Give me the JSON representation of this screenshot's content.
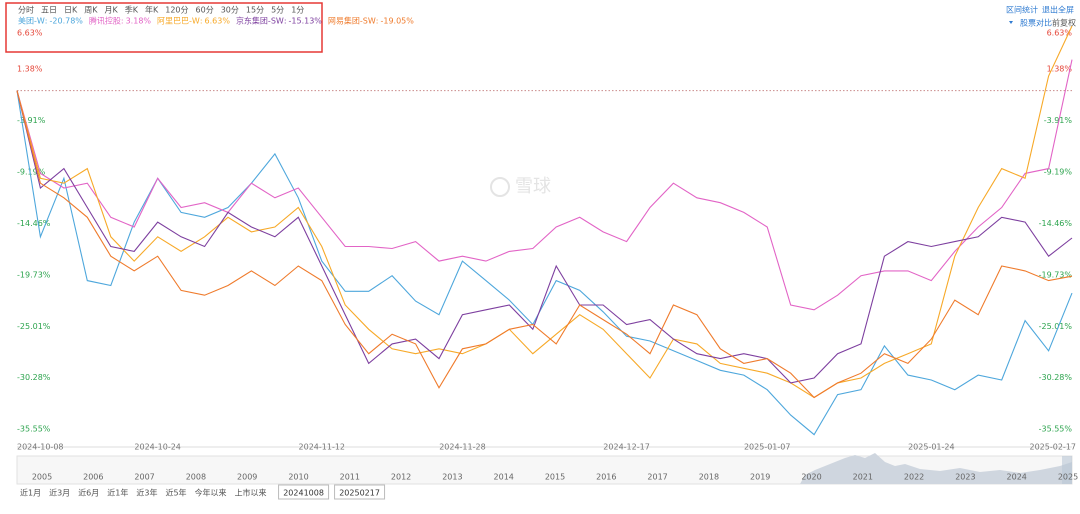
{
  "toolbar": {
    "tabs": [
      "分时",
      "五日",
      "日K",
      "周K",
      "月K",
      "季K",
      "年K",
      "120分",
      "60分",
      "30分",
      "15分",
      "5分",
      "1分"
    ],
    "right": [
      "区间统计",
      "退出全屏"
    ],
    "options": [
      "股票对比",
      "前复权"
    ]
  },
  "watermark": "雪球",
  "navigator": {
    "years": [
      "2005",
      "2006",
      "2007",
      "2008",
      "2009",
      "2010",
      "2011",
      "2012",
      "2013",
      "2014",
      "2015",
      "2016",
      "2017",
      "2018",
      "2019",
      "2020",
      "2021",
      "2022",
      "2023",
      "2024",
      "2025"
    ],
    "ranges": [
      "近1月",
      "近3月",
      "近6月",
      "近1年",
      "近3年",
      "近5年",
      "今年以来",
      "上市以来"
    ],
    "start": "20241008",
    "end": "20250217"
  },
  "chart_data": {
    "type": "line",
    "categories": [
      "2024-10-08",
      null,
      null,
      null,
      null,
      null,
      "2024-10-24",
      null,
      null,
      null,
      null,
      null,
      null,
      "2024-11-12",
      null,
      null,
      null,
      null,
      null,
      "2024-11-28",
      null,
      null,
      null,
      null,
      null,
      null,
      "2024-12-17",
      null,
      null,
      null,
      null,
      null,
      "2025-01-07",
      null,
      null,
      null,
      null,
      null,
      null,
      "2025-01-24",
      null,
      null,
      null,
      null,
      null,
      "2025-02-17"
    ],
    "ylim": [
      -35.55,
      6.63
    ],
    "yticks": [
      {
        "value": 6.63,
        "label": "6.63%"
      },
      {
        "value": 1.38,
        "label": "1.38%"
      },
      {
        "value": -3.91,
        "label": "-3.91%"
      },
      {
        "value": -9.19,
        "label": "-9.19%"
      },
      {
        "value": -14.46,
        "label": "-14.46%"
      },
      {
        "value": -19.73,
        "label": "-19.73%"
      },
      {
        "value": -25.01,
        "label": "-25.01%"
      },
      {
        "value": -30.28,
        "label": "-30.28%"
      },
      {
        "value": -35.55,
        "label": "-35.55%"
      }
    ],
    "grid": false,
    "series": [
      {
        "name": "美团-W",
        "color": "#4ea7dc",
        "value_label": "-20.78%",
        "values": [
          0,
          -15,
          -9,
          -19.5,
          -20,
          -13.5,
          -9,
          -12.5,
          -13,
          -12,
          -9.5,
          -6.5,
          -11,
          -17.5,
          -20.6,
          -20.6,
          -19,
          -21.6,
          -23,
          -17.5,
          -19.5,
          -21.5,
          -24,
          -19.5,
          -20.5,
          -22.7,
          -25.2,
          -25.7,
          -26.7,
          -27.7,
          -28.7,
          -29.2,
          -30.7,
          -33.3,
          -35.3,
          -31.2,
          -30.7,
          -26.2,
          -29.2,
          -29.7,
          -30.7,
          -29.2,
          -29.7,
          -23.6,
          -26.7,
          -20.78
        ]
      },
      {
        "name": "腾讯控股",
        "color": "#e264c6",
        "value_label": "3.18%",
        "values": [
          0,
          -8.5,
          -10,
          -9.5,
          -13,
          -14,
          -9,
          -12,
          -11.5,
          -12.5,
          -9.5,
          -11,
          -10,
          -13,
          -16,
          -16,
          -16.2,
          -15.5,
          -17.5,
          -17,
          -17.5,
          -16.5,
          -16.2,
          -14,
          -13,
          -14.5,
          -15.5,
          -12,
          -9.5,
          -11,
          -11.5,
          -12.5,
          -14,
          -22,
          -22.5,
          -21,
          -19,
          -18.5,
          -18.5,
          -19.5,
          -16.5,
          -14,
          -12,
          -8.5,
          -8,
          3.18
        ]
      },
      {
        "name": "阿里巴巴-W",
        "color": "#f7a928",
        "value_label": "6.63%",
        "values": [
          0,
          -9,
          -9.5,
          -8,
          -15,
          -17.5,
          -15,
          -16.5,
          -15,
          -13,
          -14.5,
          -14,
          -12,
          -16,
          -22,
          -24.5,
          -26.5,
          -27,
          -26.5,
          -27,
          -26,
          -24.5,
          -27,
          -25,
          -23,
          -24.5,
          -27,
          -29.5,
          -25.5,
          -26,
          -28,
          -28.5,
          -29,
          -30,
          -31.5,
          -30,
          -29.5,
          -28,
          -27,
          -26,
          -17,
          -12,
          -8,
          -9,
          1.5,
          6.63
        ]
      },
      {
        "name": "京东集团-SW",
        "color": "#7d3f9f",
        "value_label": "-15.13%",
        "values": [
          0,
          -10,
          -8,
          -12,
          -16,
          -16.5,
          -13.5,
          -15,
          -16,
          -12.5,
          -14,
          -15,
          -13,
          -18,
          -23,
          -28,
          -26,
          -25.5,
          -27.5,
          -23,
          -22.5,
          -22,
          -24.5,
          -18,
          -22,
          -22,
          -24,
          -23.5,
          -25.5,
          -27,
          -27.5,
          -27,
          -27.5,
          -30,
          -29.5,
          -27,
          -26,
          -17,
          -15.5,
          -16,
          -15.5,
          -15,
          -13,
          -13.5,
          -17,
          -15.13
        ]
      },
      {
        "name": "网易集团-SW",
        "color": "#ef7b2c",
        "value_label": "-19.05%",
        "values": [
          0,
          -9.5,
          -11,
          -13,
          -17,
          -18.5,
          -17,
          -20.5,
          -21,
          -20,
          -18.5,
          -20,
          -18,
          -19.5,
          -24,
          -27,
          -25,
          -26,
          -30.5,
          -26.5,
          -26,
          -24.5,
          -24,
          -26,
          -22,
          -23.5,
          -25,
          -27,
          -22,
          -23,
          -26.5,
          -28,
          -27.5,
          -29,
          -31.5,
          -30,
          -29,
          -27,
          -28,
          -25.5,
          -21.5,
          -23,
          -18,
          -18.5,
          -19.5,
          -19.05
        ]
      }
    ]
  }
}
